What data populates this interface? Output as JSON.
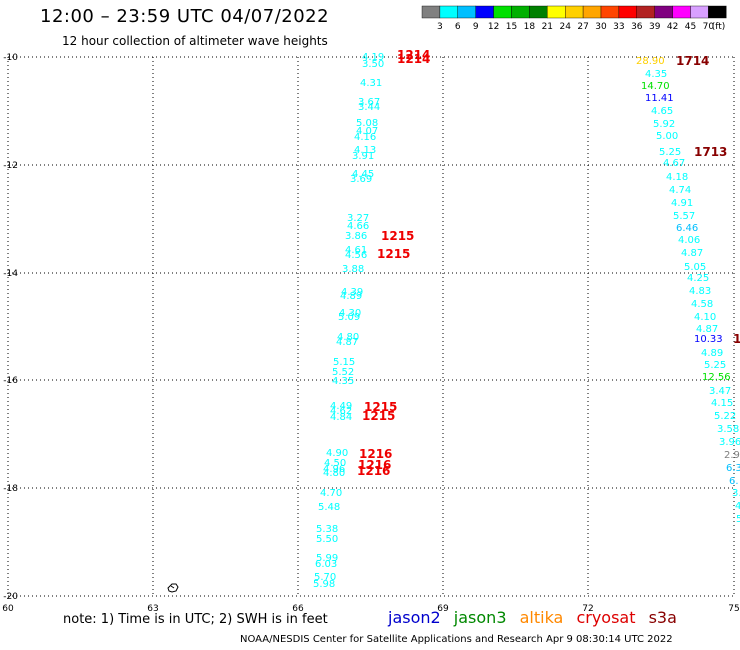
{
  "header": {
    "title": "12:00 – 23:59 UTC 04/07/2022",
    "subtitle": "12 hour collection of altimeter wave heights"
  },
  "colorbar": {
    "unit": "(ft)",
    "labels": [
      "3",
      "6",
      "9",
      "12",
      "15",
      "18",
      "21",
      "24",
      "27",
      "30",
      "33",
      "36",
      "39",
      "42",
      "45",
      "70"
    ],
    "colors": [
      "#808080",
      "#00ffff",
      "#00bfff",
      "#0000ff",
      "#00e000",
      "#00b000",
      "#008000",
      "#ffff00",
      "#ffd000",
      "#ffa500",
      "#ff4500",
      "#ff0000",
      "#b22222",
      "#800080",
      "#ff00ff",
      "#d8a0ff",
      "#000000"
    ]
  },
  "axes": {
    "lat_labels": [
      "-10",
      "-12",
      "-14",
      "-16",
      "-18",
      "-20"
    ],
    "lon_labels": [
      "60",
      "63",
      "66",
      "69",
      "72",
      "75"
    ]
  },
  "tracks": [
    {
      "name": "west_track",
      "points": [
        {
          "v": "4.19",
          "c": "#00ffff"
        },
        {
          "v": "3.50",
          "c": "#00ffff"
        },
        {
          "v": "4.31",
          "c": "#00ffff"
        },
        {
          "v": "3.67",
          "c": "#00ffff"
        },
        {
          "v": "3.44",
          "c": "#00ffff"
        },
        {
          "v": "5.08",
          "c": "#00ffff"
        },
        {
          "v": "4.07",
          "c": "#00ffff"
        },
        {
          "v": "4.16",
          "c": "#00ffff"
        },
        {
          "v": "4.13",
          "c": "#00ffff"
        },
        {
          "v": "3.91",
          "c": "#00ffff"
        },
        {
          "v": "4.45",
          "c": "#00ffff"
        },
        {
          "v": "3.69",
          "c": "#00ffff"
        },
        {
          "v": "3.27",
          "c": "#00ffff"
        },
        {
          "v": "4.66",
          "c": "#00ffff"
        },
        {
          "v": "3.86",
          "c": "#00ffff"
        },
        {
          "v": "4.61",
          "c": "#00ffff"
        },
        {
          "v": "4.56",
          "c": "#00ffff"
        },
        {
          "v": "3.88",
          "c": "#00ffff"
        },
        {
          "v": "4.39",
          "c": "#00ffff"
        },
        {
          "v": "4.89",
          "c": "#00ffff"
        },
        {
          "v": "4.30",
          "c": "#00ffff"
        },
        {
          "v": "5.09",
          "c": "#00ffff"
        },
        {
          "v": "4.80",
          "c": "#00ffff"
        },
        {
          "v": "4.87",
          "c": "#00ffff"
        },
        {
          "v": "5.15",
          "c": "#00ffff"
        },
        {
          "v": "5.52",
          "c": "#00ffff"
        },
        {
          "v": "4.35",
          "c": "#00ffff"
        },
        {
          "v": "4.49",
          "c": "#00ffff"
        },
        {
          "v": "4.62",
          "c": "#00ffff"
        },
        {
          "v": "4.84",
          "c": "#00ffff"
        },
        {
          "v": "4.90",
          "c": "#00ffff"
        },
        {
          "v": "4.50",
          "c": "#00ffff"
        },
        {
          "v": "4.96",
          "c": "#00ffff"
        },
        {
          "v": "4.80",
          "c": "#00ffff"
        },
        {
          "v": "4.70",
          "c": "#00ffff"
        },
        {
          "v": "5.48",
          "c": "#00ffff"
        },
        {
          "v": "5.38",
          "c": "#00ffff"
        },
        {
          "v": "5.50",
          "c": "#00ffff"
        },
        {
          "v": "5.99",
          "c": "#00ffff"
        },
        {
          "v": "6.03",
          "c": "#00ffff"
        },
        {
          "v": "5.70",
          "c": "#00ffff"
        },
        {
          "v": "5.98",
          "c": "#00ffff"
        }
      ],
      "times": [
        {
          "v": "1214"
        },
        {
          "v": "1214"
        },
        {
          "v": "1215"
        },
        {
          "v": "1215"
        },
        {
          "v": "1215"
        },
        {
          "v": "1215"
        },
        {
          "v": "1216"
        },
        {
          "v": "1216"
        },
        {
          "v": "1216"
        }
      ]
    },
    {
      "name": "east_track",
      "points": [
        {
          "v": "28.90",
          "c": "#ffd000"
        },
        {
          "v": "4.35",
          "c": "#00ffff"
        },
        {
          "v": "14.70",
          "c": "#00e000"
        },
        {
          "v": "11.41",
          "c": "#0000ff"
        },
        {
          "v": "4.65",
          "c": "#00ffff"
        },
        {
          "v": "5.92",
          "c": "#00ffff"
        },
        {
          "v": "5.00",
          "c": "#00ffff"
        },
        {
          "v": "5.25",
          "c": "#00ffff"
        },
        {
          "v": "4.67",
          "c": "#00ffff"
        },
        {
          "v": "4.18",
          "c": "#00ffff"
        },
        {
          "v": "4.74",
          "c": "#00ffff"
        },
        {
          "v": "4.91",
          "c": "#00ffff"
        },
        {
          "v": "5.57",
          "c": "#00ffff"
        },
        {
          "v": "6.46",
          "c": "#00bfff"
        },
        {
          "v": "4.06",
          "c": "#00ffff"
        },
        {
          "v": "4.87",
          "c": "#00ffff"
        },
        {
          "v": "5.05",
          "c": "#00ffff"
        },
        {
          "v": "4.25",
          "c": "#00ffff"
        },
        {
          "v": "4.83",
          "c": "#00ffff"
        },
        {
          "v": "4.58",
          "c": "#00ffff"
        },
        {
          "v": "4.10",
          "c": "#00ffff"
        },
        {
          "v": "4.87",
          "c": "#00ffff"
        },
        {
          "v": "10.33",
          "c": "#0000ff"
        },
        {
          "v": "4.89",
          "c": "#00ffff"
        },
        {
          "v": "5.25",
          "c": "#00ffff"
        },
        {
          "v": "12.56",
          "c": "#00e000"
        },
        {
          "v": "3.47",
          "c": "#00ffff"
        },
        {
          "v": "4.15",
          "c": "#00ffff"
        },
        {
          "v": "5.22",
          "c": "#00ffff"
        },
        {
          "v": "3.58",
          "c": "#00ffff"
        },
        {
          "v": "3.96",
          "c": "#00ffff"
        },
        {
          "v": "2.9",
          "c": "#808080"
        },
        {
          "v": "6.3",
          "c": "#00bfff"
        },
        {
          "v": "6.",
          "c": "#00bfff"
        },
        {
          "v": "3.",
          "c": "#00ffff"
        },
        {
          "v": "4",
          "c": "#00ffff"
        },
        {
          "v": "5",
          "c": "#00ffff"
        }
      ],
      "times": [
        {
          "v": "1714"
        },
        {
          "v": "1713"
        },
        {
          "v": "1"
        }
      ]
    }
  ],
  "footer": {
    "note": "note: 1) Time is in UTC; 2) SWH is in feet",
    "satellites": [
      {
        "name": "jason2",
        "color": "#0000cc"
      },
      {
        "name": "jason3",
        "color": "#008800"
      },
      {
        "name": "altika",
        "color": "#ff8800"
      },
      {
        "name": "cryosat",
        "color": "#dd0000"
      },
      {
        "name": "s3a",
        "color": "#880000"
      }
    ],
    "credit": "NOAA/NESDIS Center for Satellite Applications and Research    Apr  9 08:30:14 UTC 2022"
  }
}
